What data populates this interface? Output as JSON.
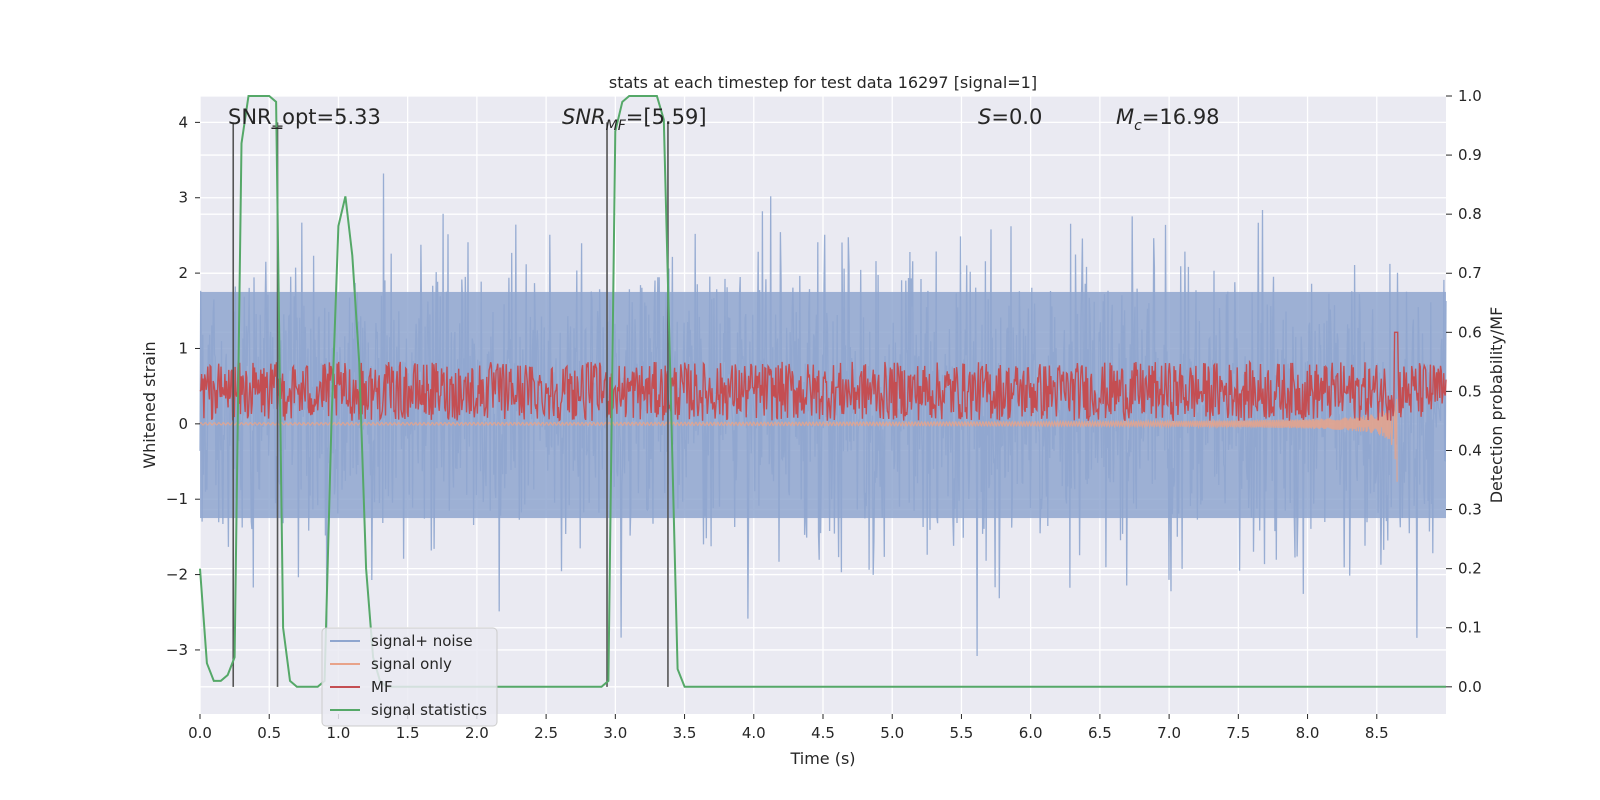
{
  "chart_data": {
    "type": "line",
    "title": "stats at each timestep for test data 16297 [signal=1]",
    "xlabel": "Time (s)",
    "ylabel": "Whitened strain",
    "ylabel_right": "Detection probability/MF",
    "xlim": [
      0.0,
      9.0
    ],
    "ylim": [
      -3.85,
      4.35
    ],
    "ylim_right": [
      -0.046,
      1.0
    ],
    "x_ticks": [
      "0.0",
      "0.5",
      "1.0",
      "1.5",
      "2.0",
      "2.5",
      "3.0",
      "3.5",
      "4.0",
      "4.5",
      "5.0",
      "5.5",
      "6.0",
      "6.5",
      "7.0",
      "7.5",
      "8.0",
      "8.5"
    ],
    "y_ticks": [
      "4",
      "3",
      "2",
      "1",
      "0",
      "−1",
      "−2",
      "−3"
    ],
    "y_ticks_right": [
      "1.0",
      "0.9",
      "0.8",
      "0.7",
      "0.6",
      "0.5",
      "0.4",
      "0.3",
      "0.2",
      "0.1",
      "0.0"
    ],
    "annotations": {
      "snr_opt": "SNR_opt=5.33",
      "snr_mf_base": "SNR",
      "snr_mf_sub": "MF",
      "snr_mf_value": "=[5.59]",
      "s_symbol": "S",
      "s_value": "=0.0",
      "mc_base": "M",
      "mc_sub": "c",
      "mc_value": "=16.98"
    },
    "legend": {
      "placement": "lower-left",
      "entries": [
        "signal+ noise",
        "signal only",
        "MF",
        "signal statistics"
      ]
    },
    "colors": {
      "noise": "#8fa6cf",
      "signal_only": "#e8a38a",
      "mf": "#c44e52",
      "signal_statistics": "#55a868",
      "markers": "#555555",
      "background": "#eaeaf2",
      "grid": "#ffffff"
    },
    "vertical_markers_x": [
      0.24,
      0.56,
      2.94,
      3.38
    ],
    "series": [
      {
        "name": "signal statistics",
        "axis": "right",
        "x": [
          0.0,
          0.05,
          0.1,
          0.15,
          0.2,
          0.25,
          0.3,
          0.35,
          0.4,
          0.45,
          0.5,
          0.55,
          0.6,
          0.65,
          0.7,
          0.75,
          0.8,
          0.85,
          0.9,
          0.95,
          1.0,
          1.05,
          1.1,
          1.15,
          1.2,
          1.25,
          1.3,
          1.35,
          1.4,
          1.5,
          2.0,
          2.5,
          2.9,
          2.95,
          3.0,
          3.05,
          3.1,
          3.2,
          3.3,
          3.35,
          3.4,
          3.45,
          3.5,
          9.0
        ],
        "y": [
          0.2,
          0.04,
          0.01,
          0.01,
          0.02,
          0.05,
          0.92,
          1.0,
          1.0,
          1.0,
          1.0,
          0.99,
          0.1,
          0.01,
          0.0,
          0.0,
          0.0,
          0.0,
          0.01,
          0.45,
          0.78,
          0.83,
          0.73,
          0.55,
          0.2,
          0.05,
          0.01,
          0.0,
          0.0,
          0.0,
          0.0,
          0.0,
          0.0,
          0.01,
          0.94,
          0.99,
          1.0,
          1.0,
          1.0,
          0.96,
          0.5,
          0.03,
          0.0,
          0.0
        ]
      }
    ],
    "signal_plus_noise": {
      "x_range": [
        0.0,
        9.0
      ],
      "typical_range": [
        -1.25,
        1.75
      ],
      "extreme_range": [
        -3.55,
        3.8
      ]
    },
    "signal_only": {
      "x_range": [
        0.0,
        8.65
      ],
      "description": "chirp growing in amplitude, peak amplitude ~1.1 near 8.65 s"
    },
    "mf": {
      "axis": "right",
      "baseline": 0.5,
      "typical_range": [
        0.45,
        0.55
      ],
      "peak": [
        8.64,
        0.6
      ]
    }
  }
}
